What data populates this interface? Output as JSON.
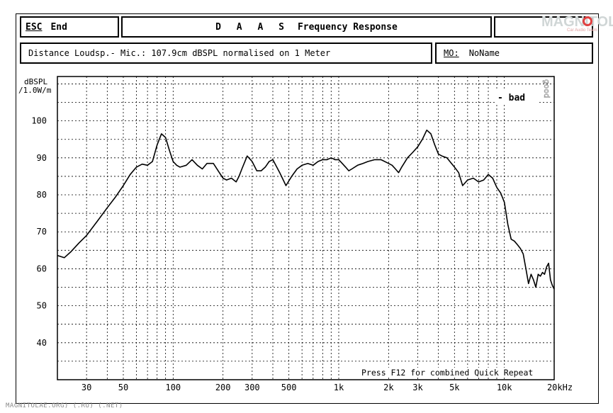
{
  "header": {
    "esc_key": "ESC",
    "esc_label": "End",
    "title_spaced": "D A A S",
    "title_main": "Frequency Response",
    "distance_text": "Distance Loudsp.- Mic.: 107.9cm dBSPL normalised on 1 Meter",
    "memory_key": "MO:",
    "memory_value": "NoName"
  },
  "logo": {
    "text": "MAGNITOL",
    "subtext": "Car Audio Team"
  },
  "watermark": "MAGNITOLAE.ORG) (.RU) (.NET)",
  "chart_data": {
    "type": "line",
    "title": "Frequency Response",
    "ylabel_line1": "dBSPL",
    "ylabel_line2": "/1.0W/m",
    "xunit": "20kHz",
    "x_scale": "log",
    "xlim": [
      20,
      20000
    ],
    "ylim": [
      30,
      112
    ],
    "grid": true,
    "yticks": [
      40,
      50,
      60,
      70,
      80,
      90,
      100
    ],
    "xticks": [
      {
        "value": 30,
        "label": "30"
      },
      {
        "value": 50,
        "label": "50"
      },
      {
        "value": 100,
        "label": "100"
      },
      {
        "value": 200,
        "label": "200"
      },
      {
        "value": 300,
        "label": "300"
      },
      {
        "value": 500,
        "label": "500"
      },
      {
        "value": 1000,
        "label": "1k"
      },
      {
        "value": 2000,
        "label": "2k"
      },
      {
        "value": 3000,
        "label": "3k"
      },
      {
        "value": 5000,
        "label": "5k"
      },
      {
        "value": 10000,
        "label": "10k"
      },
      {
        "value": 20000,
        "label": "20kHz"
      }
    ],
    "legend_text": "- bad",
    "legend_position": "top-right",
    "side_label": "good",
    "footer_note": "Press F12 for combined Quick Repeat",
    "series": [
      {
        "x": [
          20,
          22,
          24,
          27,
          30,
          35,
          40,
          45,
          50,
          55,
          60,
          65,
          70,
          75,
          80,
          85,
          90,
          95,
          100,
          105,
          110,
          120,
          130,
          140,
          150,
          160,
          175,
          190,
          200,
          210,
          225,
          240,
          250,
          260,
          280,
          300,
          320,
          340,
          360,
          380,
          400,
          440,
          480,
          520,
          560,
          600,
          650,
          700,
          750,
          800,
          850,
          900,
          950,
          1000,
          1050,
          1100,
          1150,
          1200,
          1300,
          1400,
          1500,
          1650,
          1800,
          2000,
          2100,
          2200,
          2300,
          2400,
          2600,
          2800,
          3000,
          3200,
          3400,
          3600,
          3800,
          4000,
          4200,
          4500,
          5000,
          5300,
          5600,
          6000,
          6500,
          7000,
          7500,
          8000,
          8500,
          9000,
          9500,
          10000,
          10500,
          11000,
          11500,
          12000,
          12500,
          13000,
          13500,
          14000,
          14500,
          15000,
          15500,
          16000,
          16500,
          17000,
          17500,
          18000,
          18500,
          19000,
          19500,
          20000
        ],
        "y": [
          63.6,
          63.0,
          64.5,
          67.0,
          69.0,
          73.0,
          76.5,
          79.5,
          82.5,
          85.5,
          87.5,
          88.3,
          88.0,
          89.0,
          93.5,
          96.5,
          95.5,
          92.0,
          89.0,
          88.0,
          87.5,
          88.0,
          89.5,
          88.0,
          87.0,
          88.5,
          88.5,
          86.0,
          84.5,
          84.0,
          84.5,
          83.5,
          85.0,
          87.0,
          90.5,
          89.0,
          86.5,
          86.5,
          87.5,
          89.0,
          89.5,
          86.0,
          82.5,
          85.0,
          87.0,
          88.0,
          88.5,
          88.0,
          89.0,
          89.5,
          89.5,
          90.0,
          89.5,
          89.5,
          88.5,
          87.5,
          86.5,
          87.0,
          88.0,
          88.5,
          89.0,
          89.5,
          89.5,
          88.5,
          88.0,
          87.0,
          86.0,
          87.5,
          90.0,
          91.5,
          93.0,
          95.0,
          97.5,
          96.5,
          93.5,
          91.0,
          90.5,
          90.0,
          87.5,
          86.0,
          82.5,
          84.0,
          84.5,
          83.5,
          84.0,
          85.5,
          84.5,
          82.0,
          80.5,
          78.0,
          72.0,
          68.0,
          67.5,
          66.5,
          65.5,
          64.0,
          60.0,
          56.0,
          58.5,
          57.0,
          55.0,
          58.5,
          58.0,
          59.0,
          58.5,
          60.5,
          61.5,
          57.0,
          55.5,
          54.5
        ]
      }
    ]
  }
}
